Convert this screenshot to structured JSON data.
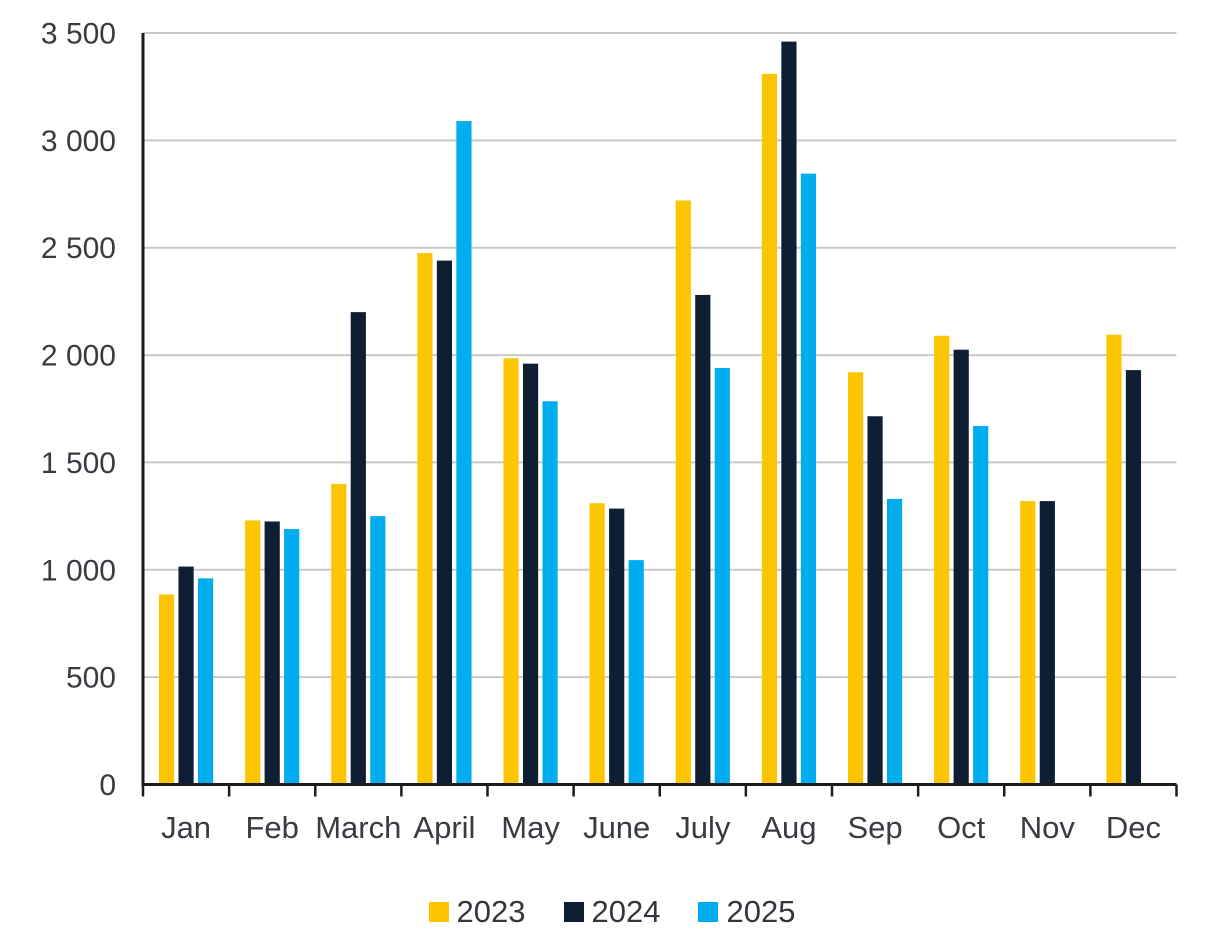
{
  "chart_data": {
    "type": "bar",
    "title": "",
    "xlabel": "",
    "ylabel": "",
    "categories": [
      "Jan",
      "Feb",
      "March",
      "April",
      "May",
      "June",
      "July",
      "Aug",
      "Sep",
      "Oct",
      "Nov",
      "Dec"
    ],
    "series": [
      {
        "name": "2023",
        "color": "#FDC500",
        "values": [
          885,
          1230,
          1400,
          2475,
          1985,
          1310,
          2720,
          3310,
          1920,
          2090,
          1320,
          2095
        ]
      },
      {
        "name": "2024",
        "color": "#0E1F33",
        "values": [
          1015,
          1225,
          2200,
          2440,
          1960,
          1285,
          2280,
          3460,
          1715,
          2025,
          1320,
          1930
        ]
      },
      {
        "name": "2025",
        "color": "#00AEEF",
        "values": [
          960,
          1190,
          1250,
          3090,
          1785,
          1045,
          1940,
          2845,
          1330,
          1670,
          null,
          null
        ]
      }
    ],
    "ylim": [
      0,
      3500
    ],
    "y_ticks": [
      0,
      500,
      1000,
      1500,
      2000,
      2500,
      3000,
      3500
    ],
    "y_tick_labels": [
      "0",
      "500",
      "1 000",
      "1 500",
      "2 000",
      "2 500",
      "3 000",
      "3 500"
    ],
    "grid": true,
    "legend_position": "bottom",
    "colors": {
      "axis": "#1c1c1c",
      "gridline": "#c9c9c9",
      "tick_label": "#3a3a42"
    }
  }
}
